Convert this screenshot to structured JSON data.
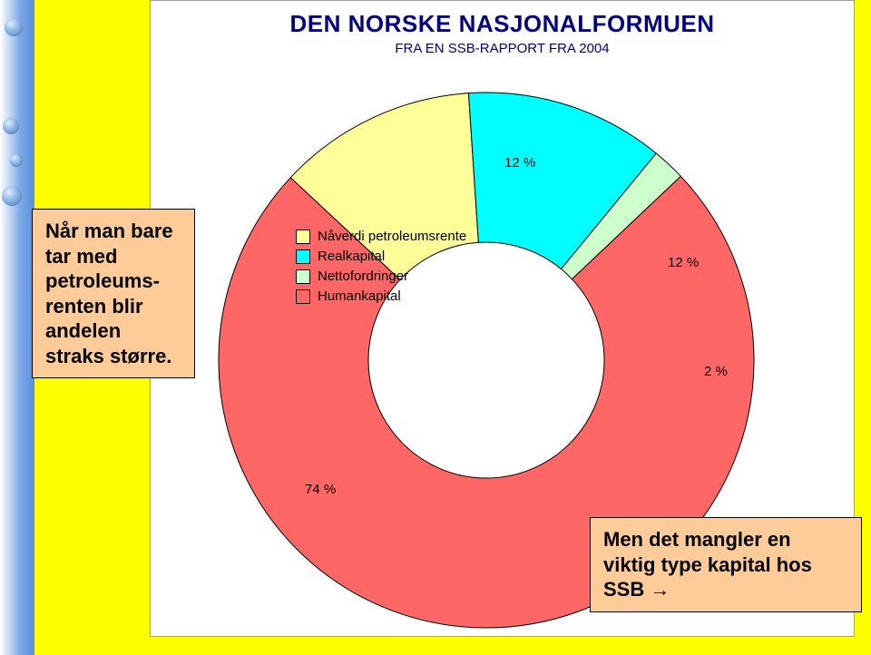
{
  "title": "DEN NORSKE NASJONALFORMUEN",
  "subtitle": "FRA EN SSB-RAPPORT FRA 2004",
  "chart": {
    "type": "donut",
    "background_color": "#ffffff",
    "border_color": "#9e9e9e",
    "outer_radius": 295,
    "inner_radius": 130,
    "stroke_color": "#000000",
    "stroke_width": 1,
    "slices": [
      {
        "key": "petroleumsrente",
        "label": "Nåverdi petroleumsrente",
        "value": 12,
        "pct_label": "12 %",
        "color": "#ffff99"
      },
      {
        "key": "realkapital",
        "label": "Realkapital",
        "value": 12,
        "pct_label": "12 %",
        "color": "#00ffff"
      },
      {
        "key": "nettofordringer",
        "label": "Nettofordringer",
        "value": 2,
        "pct_label": "2 %",
        "color": "#ccffcc"
      },
      {
        "key": "humankapital",
        "label": "Humankapital",
        "value": 74,
        "pct_label": "74 %",
        "color": "#ff6666"
      }
    ],
    "start_angle_deg": -47,
    "label_fontsize": 15,
    "label_color": "#000000"
  },
  "legend": {
    "fontsize": 15,
    "swatch_border": "#000000",
    "items": [
      {
        "label": "Nåverdi petroleumsrente",
        "color": "#ffff99"
      },
      {
        "label": "Realkapital",
        "color": "#00ffff"
      },
      {
        "label": "Nettofordringer",
        "color": "#ccffcc"
      },
      {
        "label": "Humankapital",
        "color": "#ff6666"
      }
    ]
  },
  "callouts": {
    "left": {
      "text": "Når man bare tar med petroleums-renten blir andelen straks større.",
      "bg": "#ffcc99",
      "border": "#000000",
      "fontsize": 22
    },
    "right": {
      "text": "Men det mangler en viktig type kapital hos SSB ",
      "arrow": "→",
      "bg": "#ffcc99",
      "border": "#000000",
      "fontsize": 22
    }
  },
  "slide_bg": "#ffff00",
  "leftbar_gradient": [
    "#ffffff",
    "#7aa7e8",
    "#5b8edc"
  ]
}
